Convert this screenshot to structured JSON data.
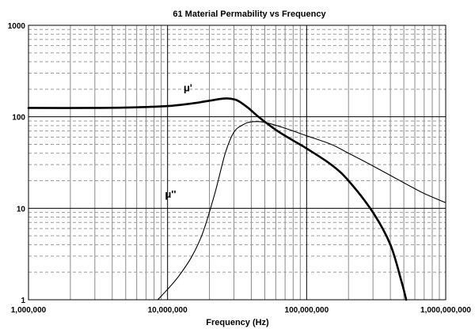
{
  "chart_data": {
    "type": "line",
    "title": "61 Material Permability vs Frequency",
    "xlabel": "Frequency (Hz)",
    "ylabel": "",
    "x_scale": "log",
    "y_scale": "log",
    "xlim": [
      1000000,
      1000000000
    ],
    "ylim": [
      1,
      1000
    ],
    "x_tick_labels": [
      "1,000,000",
      "10,000,000",
      "100,000,000",
      "1,000,000,000"
    ],
    "y_tick_labels": [
      "1",
      "10",
      "100",
      "1000"
    ],
    "grid": true,
    "legend": "none",
    "series": [
      {
        "name": "μ'",
        "color": "#000000",
        "points": [
          [
            1000000,
            125
          ],
          [
            3000000,
            125
          ],
          [
            6000000,
            127
          ],
          [
            10000000,
            131
          ],
          [
            15000000,
            140
          ],
          [
            20000000,
            150
          ],
          [
            25000000,
            158
          ],
          [
            28000000,
            158
          ],
          [
            32000000,
            150
          ],
          [
            38000000,
            125
          ],
          [
            45000000,
            100
          ],
          [
            60000000,
            72
          ],
          [
            80000000,
            55
          ],
          [
            100000000,
            45
          ],
          [
            150000000,
            30
          ],
          [
            200000000,
            20
          ],
          [
            300000000,
            9
          ],
          [
            400000000,
            4
          ],
          [
            480000000,
            1.6
          ],
          [
            520000000,
            1
          ]
        ]
      },
      {
        "name": "μ''",
        "color": "#000000",
        "points": [
          [
            8500000,
            1
          ],
          [
            10000000,
            1.3
          ],
          [
            12000000,
            1.8
          ],
          [
            15000000,
            3
          ],
          [
            18000000,
            5.5
          ],
          [
            22000000,
            15
          ],
          [
            26000000,
            40
          ],
          [
            30000000,
            68
          ],
          [
            35000000,
            82
          ],
          [
            40000000,
            88
          ],
          [
            50000000,
            87
          ],
          [
            70000000,
            75
          ],
          [
            100000000,
            62
          ],
          [
            150000000,
            50
          ],
          [
            200000000,
            40
          ],
          [
            300000000,
            29
          ],
          [
            500000000,
            19
          ],
          [
            700000000,
            14.5
          ],
          [
            1000000000,
            11.5
          ]
        ]
      }
    ]
  }
}
